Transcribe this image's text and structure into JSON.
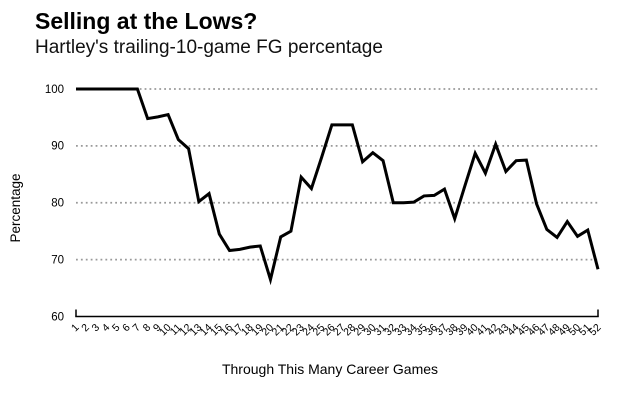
{
  "header": {
    "title": "Selling at the Lows?",
    "subtitle": "Hartley's trailing-10-game FG percentage"
  },
  "chart_data": {
    "type": "line",
    "title": "Selling at the Lows?",
    "subtitle": "Hartley's trailing-10-game FG percentage",
    "xlabel": "Through This Many Career Games",
    "ylabel": "Percentage",
    "x": [
      1,
      2,
      3,
      4,
      5,
      6,
      7,
      8,
      9,
      10,
      11,
      12,
      13,
      14,
      15,
      16,
      17,
      18,
      19,
      20,
      21,
      22,
      23,
      24,
      25,
      26,
      27,
      28,
      29,
      30,
      31,
      32,
      33,
      34,
      35,
      36,
      37,
      38,
      39,
      40,
      41,
      42,
      43,
      44,
      45,
      46,
      47,
      48,
      49,
      50,
      51,
      52
    ],
    "values": [
      100,
      100,
      100,
      100,
      100,
      100,
      100,
      94.8,
      95.1,
      95.5,
      91.1,
      89.5,
      80.2,
      81.6,
      74.5,
      71.6,
      71.8,
      72.2,
      72.4,
      66.5,
      74.0,
      75.0,
      84.5,
      82.5,
      88.0,
      93.7,
      93.7,
      93.7,
      87.2,
      88.8,
      87.4,
      80.0,
      80.0,
      80.1,
      81.2,
      81.3,
      82.4,
      77.2,
      83.0,
      88.7,
      85.2,
      90.3,
      85.5,
      87.4,
      87.5,
      79.8,
      75.3,
      73.9,
      76.7,
      74.1,
      75.2,
      68.3
    ],
    "ylim": [
      60,
      100
    ],
    "yticks": [
      60,
      70,
      80,
      90,
      100
    ],
    "gridlines_at": [
      70,
      80,
      90,
      100
    ],
    "grid_style": "dotted",
    "legend": "none",
    "line_color": "#000000",
    "grid_color": "#999999",
    "text_color": "#000000",
    "background": "#ffffff"
  }
}
